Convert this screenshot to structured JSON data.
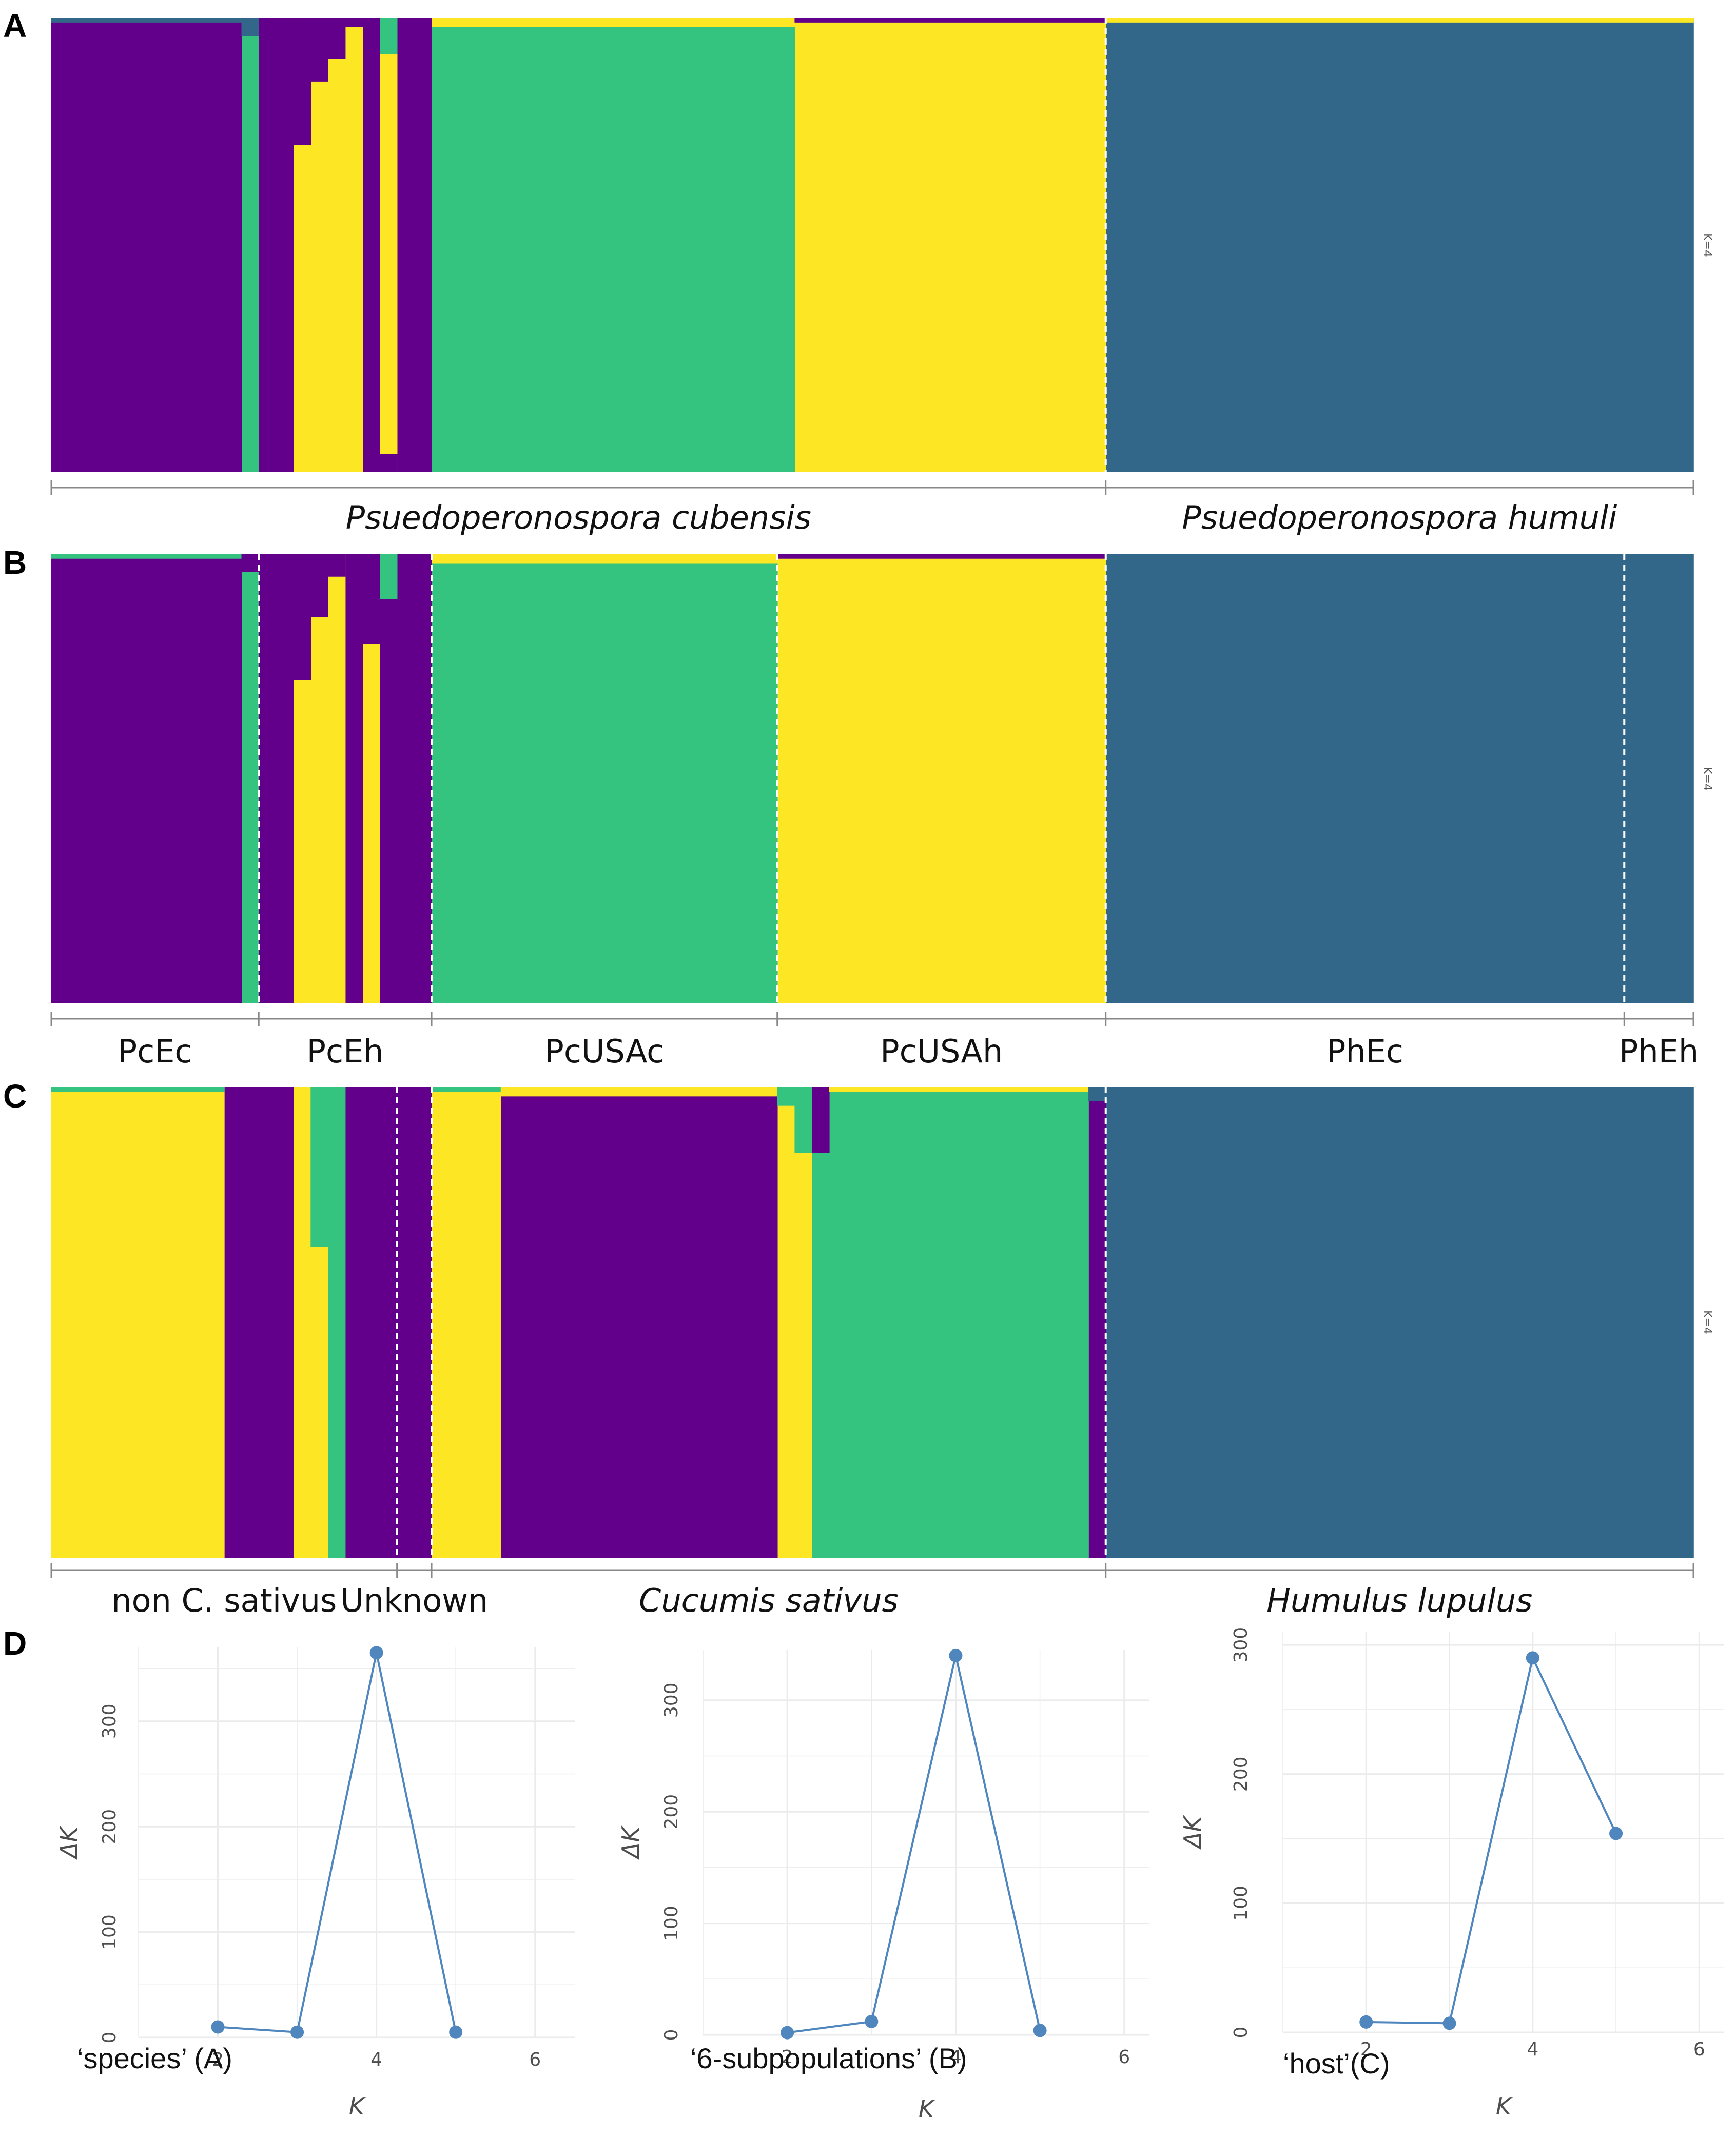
{
  "colors": {
    "purple": "#63008b",
    "green": "#35c47f",
    "yellow": "#fde725",
    "blue": "#33678a",
    "line": "#4f86bd",
    "grid": "#ebebeb",
    "separator": "#ffffff",
    "axis": "#888888"
  },
  "panels": {
    "A": "A",
    "B": "B",
    "C": "C",
    "D": "D"
  },
  "chart_data": [
    {
      "type": "stacked-bar",
      "panel": "A",
      "k_label": "K=4",
      "ylim": [
        0,
        1
      ],
      "groups": [
        {
          "label": "Psuedoperonospora cubensis",
          "italic": true,
          "count": 61
        },
        {
          "label": "Psuedoperonospora humuli",
          "italic": true,
          "count": 34
        }
      ],
      "segments": [
        {
          "start": 0,
          "end": 11,
          "comp": {
            "purple": 0.99,
            "blue": 0.01
          }
        },
        {
          "start": 11,
          "end": 12,
          "comp": {
            "green": 0.96,
            "blue": 0.04
          }
        },
        {
          "start": 12,
          "end": 14,
          "comp": {
            "purple": 1
          }
        },
        {
          "start": 14,
          "end": 15,
          "comp": {
            "yellow": 0.72,
            "purple": 0.28
          }
        },
        {
          "start": 15,
          "end": 16,
          "comp": {
            "yellow": 0.86,
            "purple": 0.14
          }
        },
        {
          "start": 16,
          "end": 17,
          "comp": {
            "yellow": 0.91,
            "purple": 0.09
          }
        },
        {
          "start": 17,
          "end": 18,
          "comp": {
            "yellow": 0.98,
            "purple": 0.02
          }
        },
        {
          "start": 18,
          "end": 19,
          "comp": {
            "purple": 1
          }
        },
        {
          "start": 19,
          "end": 20,
          "comp": {
            "yellow": 0.88,
            "green": 0.08,
            "purple": 0.04
          }
        },
        {
          "start": 20,
          "end": 22,
          "comp": {
            "purple": 1
          }
        },
        {
          "start": 22,
          "end": 43,
          "comp": {
            "green": 0.98,
            "yellow": 0.02
          }
        },
        {
          "start": 43,
          "end": 61,
          "comp": {
            "yellow": 0.99,
            "purple": 0.01
          }
        },
        {
          "start": 61,
          "end": 95,
          "comp": {
            "blue": 0.99,
            "yellow": 0.01
          }
        }
      ]
    },
    {
      "type": "stacked-bar",
      "panel": "B",
      "k_label": "K=4",
      "ylim": [
        0,
        1
      ],
      "groups": [
        {
          "label": "PcEc",
          "italic": false,
          "count": 12
        },
        {
          "label": "PcEh",
          "italic": false,
          "count": 10
        },
        {
          "label": "PcUSAc",
          "italic": false,
          "count": 20
        },
        {
          "label": "PcUSAh",
          "italic": false,
          "count": 19
        },
        {
          "label": "PhEc",
          "italic": false,
          "count": 30
        },
        {
          "label": "PhEh",
          "italic": false,
          "count": 4
        }
      ],
      "segments": [
        {
          "start": 0,
          "end": 11,
          "comp": {
            "purple": 0.99,
            "green": 0.01
          }
        },
        {
          "start": 11,
          "end": 12,
          "comp": {
            "green": 0.96,
            "purple": 0.04
          }
        },
        {
          "start": 12,
          "end": 14,
          "comp": {
            "purple": 1
          }
        },
        {
          "start": 14,
          "end": 15,
          "comp": {
            "yellow": 0.72,
            "purple": 0.28
          }
        },
        {
          "start": 15,
          "end": 16,
          "comp": {
            "yellow": 0.86,
            "purple": 0.14
          }
        },
        {
          "start": 16,
          "end": 17,
          "comp": {
            "yellow": 0.95,
            "purple": 0.05
          }
        },
        {
          "start": 17,
          "end": 18,
          "comp": {
            "purple": 1
          }
        },
        {
          "start": 18,
          "end": 19,
          "comp": {
            "yellow": 0.8,
            "purple": 0.2
          }
        },
        {
          "start": 19,
          "end": 20,
          "comp": {
            "purple": 0.9,
            "green": 0.1
          }
        },
        {
          "start": 20,
          "end": 22,
          "comp": {
            "purple": 1
          }
        },
        {
          "start": 22,
          "end": 42,
          "comp": {
            "green": 0.98,
            "yellow": 0.02
          }
        },
        {
          "start": 42,
          "end": 61,
          "comp": {
            "yellow": 0.99,
            "purple": 0.01
          }
        },
        {
          "start": 61,
          "end": 95,
          "comp": {
            "blue": 1
          }
        }
      ]
    },
    {
      "type": "stacked-bar",
      "panel": "C",
      "k_label": "K=4",
      "ylim": [
        0,
        1
      ],
      "groups": [
        {
          "label": "non C. sativus",
          "italic": false,
          "count": 20
        },
        {
          "label": "Unknown",
          "italic": false,
          "count": 2
        },
        {
          "label": "Cucumis sativus",
          "italic": true,
          "count": 39
        },
        {
          "label": "Humulus lupulus",
          "italic": true,
          "count": 34
        }
      ],
      "segments": [
        {
          "start": 0,
          "end": 10,
          "comp": {
            "yellow": 0.99,
            "green": 0.01
          }
        },
        {
          "start": 10,
          "end": 14,
          "comp": {
            "purple": 1
          }
        },
        {
          "start": 14,
          "end": 15,
          "comp": {
            "yellow": 1
          }
        },
        {
          "start": 15,
          "end": 16,
          "comp": {
            "yellow": 0.66,
            "green": 0.34
          }
        },
        {
          "start": 16,
          "end": 17,
          "comp": {
            "green": 1
          }
        },
        {
          "start": 17,
          "end": 18,
          "comp": {
            "purple": 1
          }
        },
        {
          "start": 18,
          "end": 20,
          "comp": {
            "purple": 1
          }
        },
        {
          "start": 20,
          "end": 22,
          "comp": {
            "purple": 1
          }
        },
        {
          "start": 22,
          "end": 26,
          "comp": {
            "yellow": 0.99,
            "green": 0.01
          }
        },
        {
          "start": 26,
          "end": 42,
          "comp": {
            "purple": 0.98,
            "yellow": 0.02
          }
        },
        {
          "start": 42,
          "end": 43,
          "comp": {
            "yellow": 0.96,
            "green": 0.04
          }
        },
        {
          "start": 43,
          "end": 44,
          "comp": {
            "yellow": 0.86,
            "green": 0.14
          }
        },
        {
          "start": 44,
          "end": 45,
          "comp": {
            "purple": 0.14,
            "green": 0.86
          }
        },
        {
          "start": 45,
          "end": 60,
          "comp": {
            "green": 0.99,
            "yellow": 0.01
          }
        },
        {
          "start": 60,
          "end": 61,
          "comp": {
            "purple": 0.97,
            "blue": 0.03
          }
        },
        {
          "start": 61,
          "end": 95,
          "comp": {
            "blue": 1
          }
        }
      ]
    },
    {
      "type": "line",
      "panel": "D",
      "model_label": "‘species’ (A)",
      "xlabel": "K",
      "ylabel": "ΔK",
      "x": [
        2,
        3,
        4,
        5
      ],
      "y": [
        10,
        5,
        365,
        5
      ],
      "xlim": [
        1,
        6.5
      ],
      "ylim": [
        0,
        370
      ],
      "xticks": [
        "2",
        "4",
        "6"
      ],
      "yticks": [
        "0",
        "100",
        "200",
        "300"
      ]
    },
    {
      "type": "line",
      "panel": "D",
      "model_label": "‘6-subpopulations’ (B)",
      "xlabel": "K",
      "ylabel": "ΔK",
      "x": [
        2,
        3,
        4,
        5
      ],
      "y": [
        2,
        12,
        340,
        4
      ],
      "xlim": [
        1,
        6.3
      ],
      "ylim": [
        0,
        345
      ],
      "xticks": [
        "2",
        "4",
        "6"
      ],
      "yticks": [
        "0",
        "100",
        "200",
        "300"
      ]
    },
    {
      "type": "line",
      "panel": "D",
      "model_label": "‘host’(C)",
      "xlabel": "K",
      "ylabel": "ΔK",
      "x": [
        2,
        3,
        4,
        5
      ],
      "y": [
        8,
        7,
        290,
        154
      ],
      "xlim": [
        1,
        6.3
      ],
      "ylim": [
        0,
        310
      ],
      "xticks": [
        "2",
        "4",
        "6"
      ],
      "yticks": [
        "0",
        "100",
        "200",
        "300"
      ]
    }
  ]
}
